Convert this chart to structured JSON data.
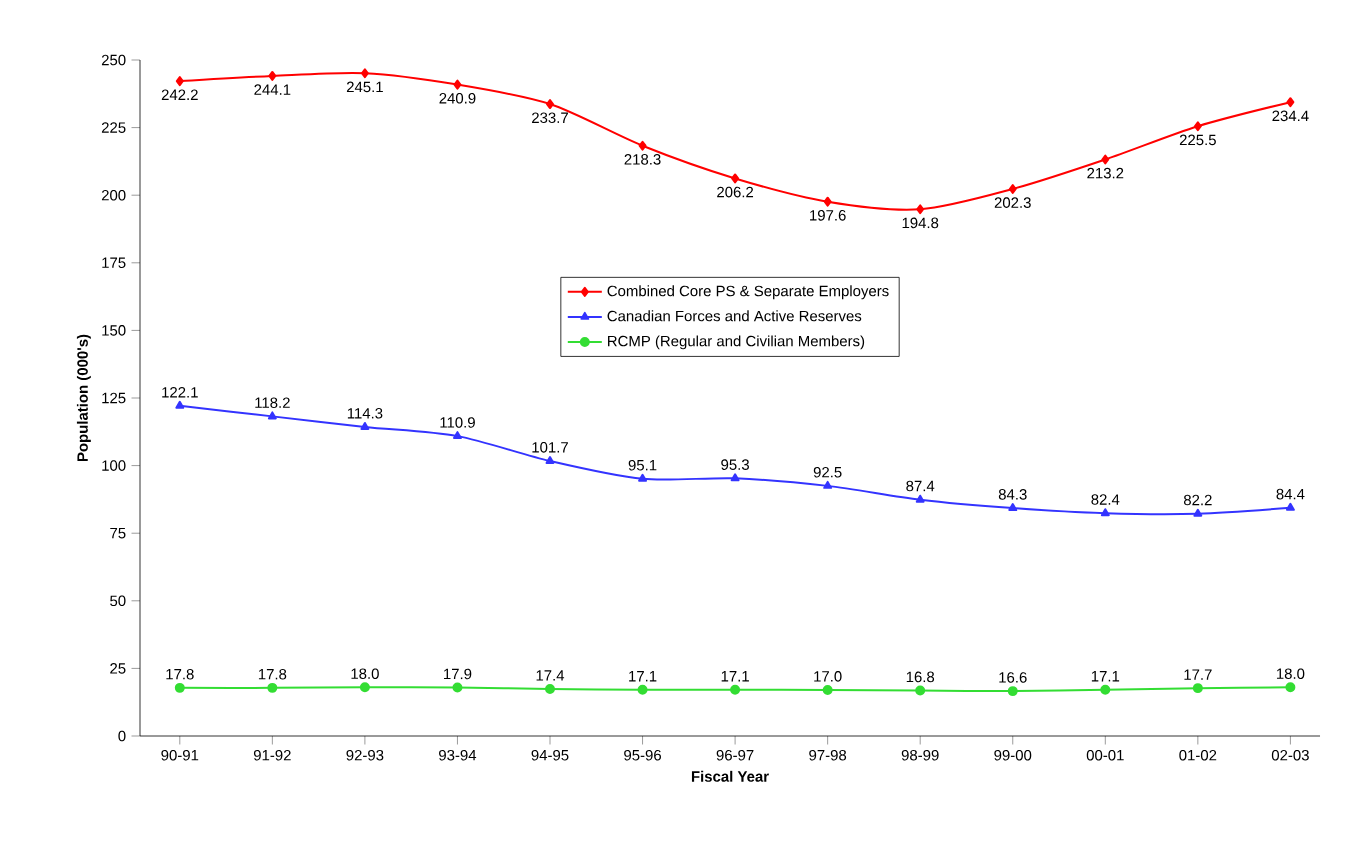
{
  "chart_data": {
    "type": "line",
    "xlabel": "Fiscal Year",
    "ylabel": "Population (000's)",
    "categories": [
      "90-91",
      "91-92",
      "92-93",
      "93-94",
      "94-95",
      "95-96",
      "96-97",
      "97-98",
      "98-99",
      "99-00",
      "00-01",
      "01-02",
      "02-03"
    ],
    "series": [
      {
        "name": "Combined Core PS & Separate Employers",
        "color": "#ff0000",
        "marker": "diamond",
        "values": [
          242.2,
          244.1,
          245.1,
          240.9,
          233.7,
          218.3,
          206.2,
          197.6,
          194.8,
          202.3,
          213.2,
          225.5,
          234.4
        ],
        "value_labels": [
          "242.2",
          "244.1",
          "245.1",
          "240.9",
          "233.7",
          "218.3",
          "206.2",
          "197.6",
          "194.8",
          "202.3",
          "213.2",
          "225.5",
          "234.4"
        ]
      },
      {
        "name": "Canadian Forces and Active Reserves",
        "color": "#3333ff",
        "marker": "triangle",
        "values": [
          122.1,
          118.2,
          114.3,
          110.9,
          101.7,
          95.1,
          95.3,
          92.5,
          87.4,
          84.3,
          82.4,
          82.2,
          84.4
        ],
        "value_labels": [
          "122.1",
          "118.2",
          "114.3",
          "110.9",
          "101.7",
          "95.1",
          "95.3",
          "92.5",
          "87.4",
          "84.3",
          "82.4",
          "82.2",
          "84.4"
        ]
      },
      {
        "name": "RCMP (Regular and Civilian Members)",
        "color": "#33dd33",
        "marker": "circle",
        "values": [
          17.8,
          17.8,
          18.0,
          17.9,
          17.4,
          17.1,
          17.1,
          17.0,
          16.8,
          16.6,
          17.1,
          17.7,
          18.0
        ],
        "value_labels": [
          "17.8",
          "17.8",
          "18.0",
          "17.9",
          "17.4",
          "17.1",
          "17.1",
          "17.0",
          "16.8",
          "16.6",
          "17.1",
          "17.7",
          "18.0"
        ]
      }
    ],
    "ylim": [
      0,
      250
    ],
    "yticks": [
      0,
      25,
      50,
      75,
      100,
      125,
      150,
      175,
      200,
      225,
      250
    ],
    "legend": "center",
    "grid": false
  }
}
